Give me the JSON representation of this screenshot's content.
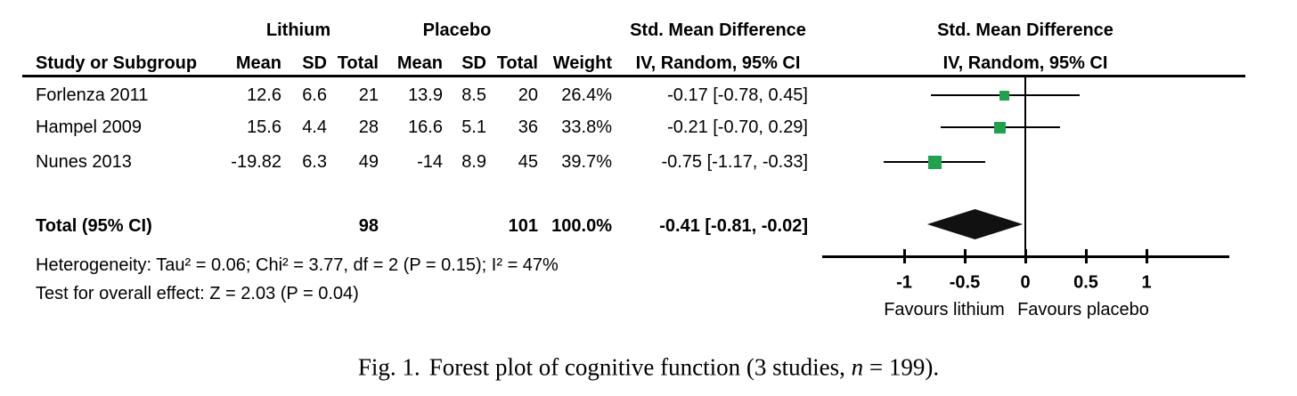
{
  "table": {
    "headers": {
      "study": "Study or Subgroup",
      "group1": "Lithium",
      "group2": "Placebo",
      "mean": "Mean",
      "sd": "SD",
      "total": "Total",
      "weight": "Weight",
      "smd_line1": "Std. Mean Difference",
      "smd_line2": "IV, Random, 95% CI",
      "plot_line1": "Std. Mean Difference",
      "plot_line2": "IV, Random, 95% CI"
    },
    "studies": [
      {
        "label": "Forlenza 2011",
        "mean1": "12.6",
        "sd1": "6.6",
        "total1": "21",
        "mean2": "13.9",
        "sd2": "8.5",
        "total2": "20",
        "weight": "26.4%",
        "ci_text": "-0.17 [-0.78, 0.45]"
      },
      {
        "label": "Hampel 2009",
        "mean1": "15.6",
        "sd1": "4.4",
        "total1": "28",
        "mean2": "16.6",
        "sd2": "5.1",
        "total2": "36",
        "weight": "33.8%",
        "ci_text": "-0.21 [-0.70, 0.29]"
      },
      {
        "label": "Nunes 2013",
        "mean1": "-19.82",
        "sd1": "6.3",
        "total1": "49",
        "mean2": "-14",
        "sd2": "8.9",
        "total2": "45",
        "weight": "39.7%",
        "ci_text": "-0.75 [-1.17, -0.33]"
      }
    ],
    "total_row": {
      "label": "Total (95% CI)",
      "total1": "98",
      "total2": "101",
      "weight": "100.0%",
      "ci_text": "-0.41 [-0.81, -0.02]"
    },
    "heterogeneity": "Heterogeneity: Tau² = 0.06; Chi² = 3.77, df = 2 (P = 0.15); I² = 47%",
    "overall_effect": "Test for overall effect: Z = 2.03 (P = 0.04)"
  },
  "chart_data": {
    "type": "forest",
    "title": "Std. Mean Difference, IV, Random, 95% CI",
    "studies": [
      {
        "name": "Forlenza 2011",
        "smd": -0.17,
        "ci_low": -0.78,
        "ci_high": 0.45,
        "weight_pct": 26.4
      },
      {
        "name": "Hampel 2009",
        "smd": -0.21,
        "ci_low": -0.7,
        "ci_high": 0.29,
        "weight_pct": 33.8
      },
      {
        "name": "Nunes 2013",
        "smd": -0.75,
        "ci_low": -1.17,
        "ci_high": -0.33,
        "weight_pct": 39.7
      }
    ],
    "total": {
      "name": "Total (95% CI)",
      "smd": -0.41,
      "ci_low": -0.81,
      "ci_high": -0.02
    },
    "axis": {
      "xmin": -1.68,
      "xmax": 1.68,
      "ticks": [
        -1,
        -0.5,
        0,
        0.5,
        1
      ],
      "tick_labels": [
        "-1",
        "-0.5",
        "0",
        "0.5",
        "1"
      ]
    },
    "xlabel_left": "Favours lithium",
    "xlabel_right": "Favours placebo",
    "marker_color": "#1FA24C",
    "diamond_color": "#111111",
    "line_color": "#000000"
  },
  "caption": {
    "figure_label": "Fig. 1.",
    "text_before_n": "Forest plot of cognitive function (3 studies, ",
    "n_symbol": "n",
    "text_after_n": " = 199)."
  }
}
